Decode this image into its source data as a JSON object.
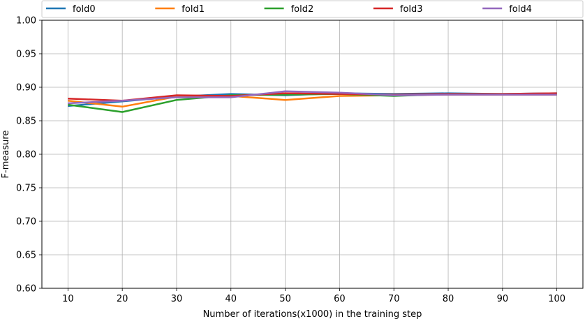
{
  "chart_data": {
    "type": "line",
    "title": "",
    "xlabel": "Number of iterations(x1000) in the training step",
    "ylabel": "F-measure",
    "x": [
      10,
      20,
      30,
      40,
      50,
      60,
      70,
      80,
      90,
      100
    ],
    "xticks": [
      "10",
      "20",
      "30",
      "40",
      "50",
      "60",
      "70",
      "80",
      "90",
      "100"
    ],
    "yticks": [
      "0.60",
      "0.65",
      "0.70",
      "0.75",
      "0.80",
      "0.85",
      "0.90",
      "0.95",
      "1.00"
    ],
    "xlim": [
      5.2,
      104.8
    ],
    "ylim": [
      0.6,
      1.0
    ],
    "grid": true,
    "legend_position": "top",
    "series": [
      {
        "name": "fold0",
        "color": "#1f77b4",
        "values": [
          0.872,
          0.879,
          0.886,
          0.89,
          0.888,
          0.891,
          0.89,
          0.891,
          0.89,
          0.891
        ]
      },
      {
        "name": "fold1",
        "color": "#ff7f0e",
        "values": [
          0.88,
          0.871,
          0.886,
          0.887,
          0.881,
          0.887,
          0.888,
          0.889,
          0.889,
          0.889
        ]
      },
      {
        "name": "fold2",
        "color": "#2ca02c",
        "values": [
          0.874,
          0.863,
          0.881,
          0.888,
          0.889,
          0.89,
          0.887,
          0.89,
          0.89,
          0.89
        ]
      },
      {
        "name": "fold3",
        "color": "#d62728",
        "values": [
          0.883,
          0.88,
          0.888,
          0.887,
          0.891,
          0.89,
          0.889,
          0.89,
          0.89,
          0.891
        ]
      },
      {
        "name": "fold4",
        "color": "#9467bd",
        "values": [
          0.876,
          0.88,
          0.885,
          0.885,
          0.894,
          0.892,
          0.888,
          0.889,
          0.889,
          0.889
        ]
      }
    ]
  }
}
